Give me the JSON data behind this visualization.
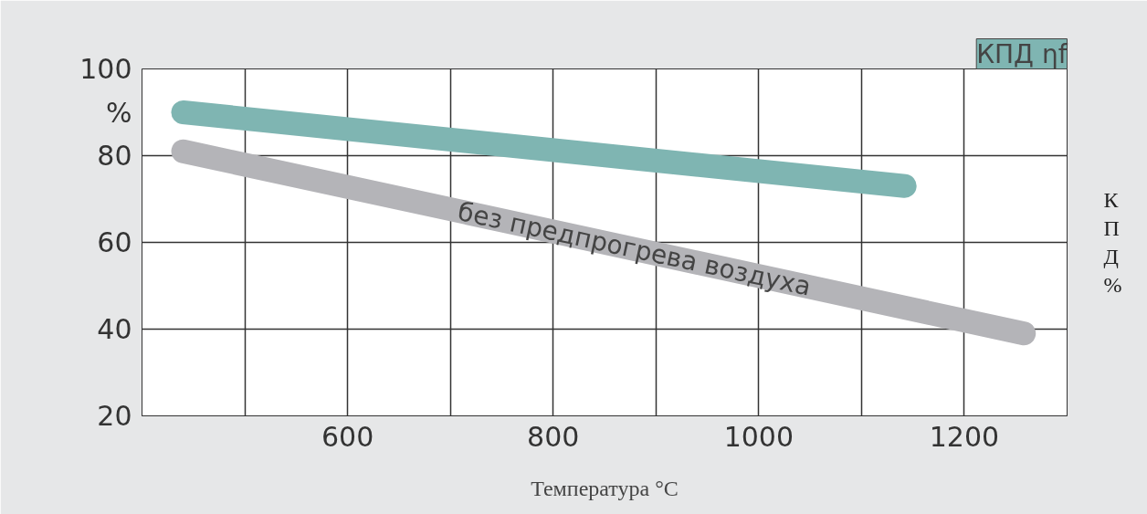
{
  "chart_data": {
    "type": "line",
    "xlabel": "Температура °C",
    "ylabel": "КПД %",
    "xlim": [
      400,
      1300
    ],
    "xticks": [
      {
        "value": 500,
        "label": null
      },
      600,
      {
        "value": 700,
        "label": null
      },
      800,
      {
        "value": 900,
        "label": null
      },
      1000,
      {
        "value": 1100,
        "label": null
      },
      1200
    ],
    "ylim": [
      20,
      100
    ],
    "yticks": [
      20,
      40,
      60,
      80,
      {
        "value": 90,
        "label": "%"
      },
      100
    ],
    "grid": true,
    "series": [
      {
        "name": "КПД ηf",
        "color": "#7fb5b2",
        "x": [
          440,
          1142
        ],
        "values": [
          90,
          73
        ]
      },
      {
        "name": "без предпрогрева воздуха",
        "color": "#b4b4b8",
        "x": [
          440,
          1258
        ],
        "values": [
          81,
          39
        ]
      }
    ]
  }
}
